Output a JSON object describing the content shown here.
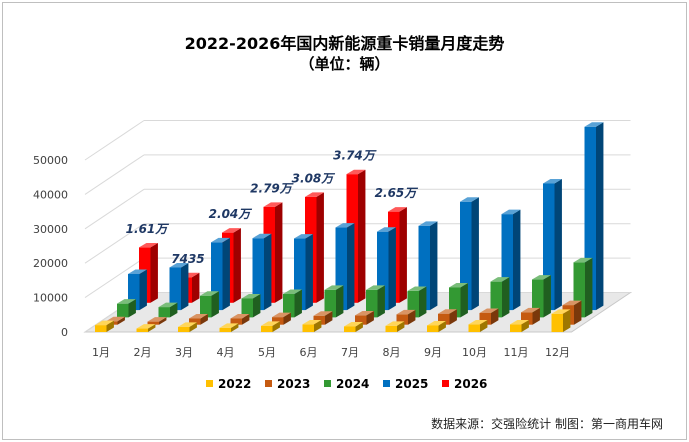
{
  "title": "2022-2026年国内新能源重卡销量月度走势",
  "subtitle": "（单位：辆）",
  "source": "数据来源：交强险统计 制图：第一商用车网",
  "chart_data": {
    "type": "bar",
    "subtype": "3d-clustered-column",
    "categories": [
      "1月",
      "2月",
      "3月",
      "4月",
      "5月",
      "6月",
      "7月",
      "8月",
      "9月",
      "10月",
      "11月",
      "12月"
    ],
    "y_ticks": [
      "0",
      "10000",
      "20000",
      "30000",
      "40000",
      "50000"
    ],
    "ylim": [
      0,
      50000
    ],
    "legend_position": "bottom",
    "series": [
      {
        "name": "2022",
        "color": "#ffc000",
        "values": [
          2000,
          1000,
          1500,
          1200,
          1800,
          2200,
          1600,
          1800,
          1900,
          2200,
          2200,
          5300
        ]
      },
      {
        "name": "2023",
        "color": "#c55a11",
        "values": [
          1000,
          900,
          1800,
          1800,
          2200,
          2600,
          2700,
          3000,
          3200,
          3400,
          3600,
          5700
        ]
      },
      {
        "name": "2024",
        "color": "#339933",
        "values": [
          4000,
          3000,
          6300,
          5500,
          6800,
          8000,
          8000,
          7700,
          8700,
          10400,
          11000,
          16000
        ]
      },
      {
        "name": "2025",
        "color": "#0070c0",
        "values": [
          10500,
          12400,
          19700,
          20900,
          20800,
          24000,
          22800,
          24500,
          31500,
          27900,
          36800,
          53300
        ]
      },
      {
        "name": "2026",
        "color": "#ff0000",
        "values": [
          16100,
          7435,
          20400,
          27900,
          30800,
          37400,
          26500,
          null,
          null,
          null,
          null,
          null
        ]
      }
    ],
    "data_labels": [
      "1.61万",
      "7435",
      "2.04万",
      "2.79万",
      "3.08万",
      "3.74万",
      "2.65万"
    ]
  }
}
